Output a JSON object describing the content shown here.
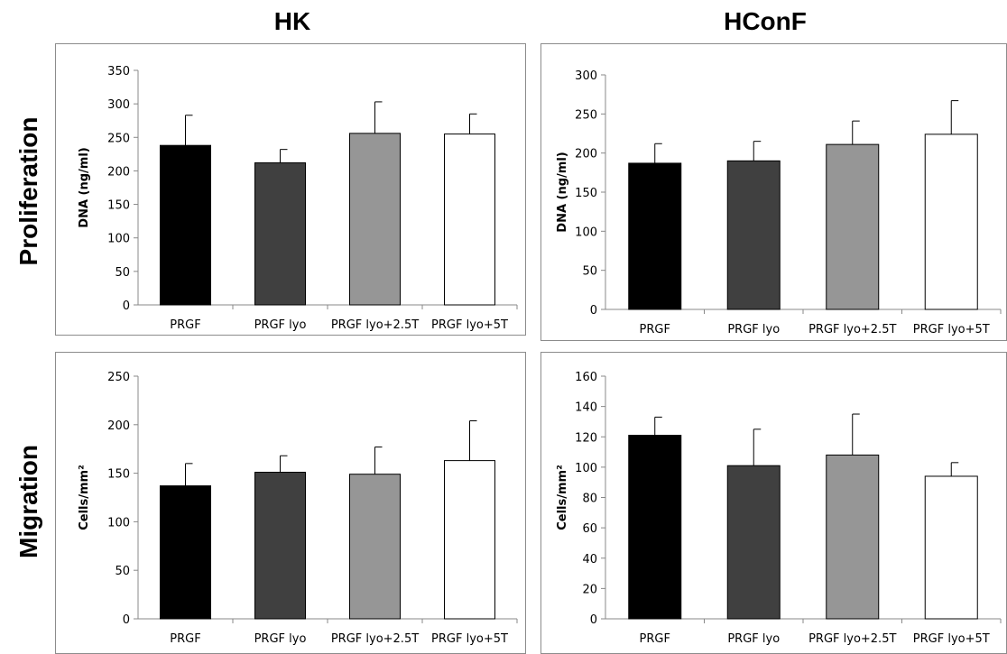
{
  "column_titles": {
    "left": "HK",
    "right": "HConF"
  },
  "row_titles": {
    "top": "Proliferation",
    "bottom": "Migration"
  },
  "colors": {
    "bar_fills": [
      "#000000",
      "#404040",
      "#969696",
      "#ffffff"
    ],
    "bar_stroke": "#000000",
    "frame": "#8c8c8c"
  },
  "chart_data": [
    {
      "type": "bar",
      "panel": "HK proliferation",
      "ylabel": "DNA (ng/ml)",
      "categories": [
        "PRGF",
        "PRGF lyo",
        "PRGF lyo+2.5T",
        "PRGF lyo+5T"
      ],
      "values": [
        238,
        212,
        256,
        255
      ],
      "errors": [
        45,
        20,
        47,
        30
      ],
      "ylim": [
        0,
        350
      ],
      "yticks": [
        0,
        50,
        100,
        150,
        200,
        250,
        300,
        350
      ],
      "grid": false
    },
    {
      "type": "bar",
      "panel": "HConF proliferation",
      "ylabel": "DNA (ng/ml)",
      "categories": [
        "PRGF",
        "PRGF lyo",
        "PRGF lyo+2.5T",
        "PRGF lyo+5T"
      ],
      "values": [
        187,
        190,
        211,
        224
      ],
      "errors": [
        25,
        25,
        30,
        43
      ],
      "ylim": [
        0,
        300
      ],
      "yticks": [
        0,
        50,
        100,
        150,
        200,
        250,
        300
      ],
      "grid": false
    },
    {
      "type": "bar",
      "panel": "HK migration",
      "ylabel": "Cells/mm²",
      "categories": [
        "PRGF",
        "PRGF lyo",
        "PRGF lyo+2.5T",
        "PRGF lyo+5T"
      ],
      "values": [
        137,
        151,
        149,
        163
      ],
      "errors": [
        23,
        17,
        28,
        41
      ],
      "ylim": [
        0,
        250
      ],
      "yticks": [
        0,
        50,
        100,
        150,
        200,
        250
      ],
      "grid": false
    },
    {
      "type": "bar",
      "panel": "HConF migration",
      "ylabel": "Cells/mm²",
      "categories": [
        "PRGF",
        "PRGF lyo",
        "PRGF lyo+2.5T",
        "PRGF lyo+5T"
      ],
      "values": [
        121,
        101,
        108,
        94
      ],
      "errors": [
        12,
        24,
        27,
        9
      ],
      "ylim": [
        0,
        160
      ],
      "yticks": [
        0,
        20,
        40,
        60,
        80,
        100,
        120,
        140,
        160
      ],
      "grid": false
    }
  ]
}
